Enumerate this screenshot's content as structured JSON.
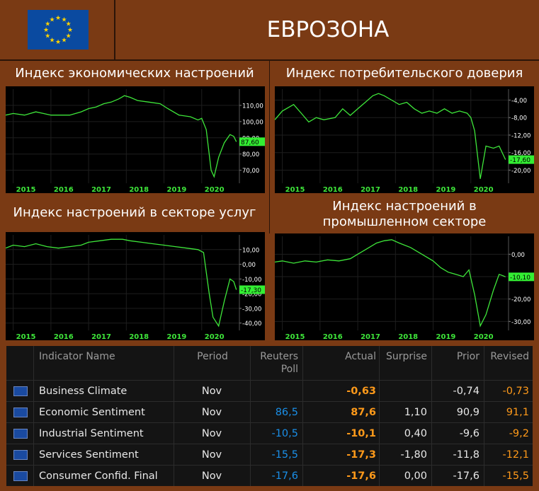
{
  "header": {
    "region": "ЕВРОЗОНА",
    "flag_icon": "eu-flag-icon"
  },
  "colors": {
    "line": "#3ee63a",
    "axis_text": "#ffffff",
    "year_text": "#3ee63a",
    "positive_value": "#ff9a1a",
    "poll_value": "#1a8fe8",
    "background": "#7a3a14"
  },
  "chart_data": [
    {
      "type": "line",
      "title": "Индекс экономических настроений",
      "x_ticks": [
        "2015",
        "2016",
        "2017",
        "2018",
        "2019",
        "2020"
      ],
      "y_ticks": [
        "110,00",
        "100,00",
        "90,00",
        "80,00",
        "70,00"
      ],
      "ylim": [
        62,
        120
      ],
      "xlim": [
        2014.8,
        2021.0
      ],
      "last_value_label": "87,60",
      "last_value": 87.6,
      "series": [
        {
          "x": [
            2014.8,
            2015.0,
            2015.3,
            2015.6,
            2015.8,
            2016.0,
            2016.2,
            2016.5,
            2016.8,
            2017.0,
            2017.2,
            2017.4,
            2017.6,
            2017.8,
            2017.95,
            2018.1,
            2018.3,
            2018.6,
            2018.9,
            2019.1,
            2019.4,
            2019.7,
            2019.9,
            2020.0,
            2020.12,
            2020.25,
            2020.33,
            2020.45,
            2020.6,
            2020.75,
            2020.85,
            2020.92
          ],
          "y": [
            104,
            105,
            104,
            106,
            105,
            104,
            104,
            104,
            106,
            108,
            109,
            111,
            112,
            114,
            116,
            115,
            113,
            112,
            111,
            108,
            104,
            103,
            101,
            102,
            95,
            70,
            66,
            78,
            87,
            92,
            90.9,
            87.6
          ]
        }
      ]
    },
    {
      "type": "line",
      "title": "Индекс потребительского доверия",
      "x_ticks": [
        "2015",
        "2016",
        "2017",
        "2018",
        "2019",
        "2020"
      ],
      "y_ticks": [
        "-4,00",
        "-8,00",
        "-12,00",
        "-16,00",
        "-20,00"
      ],
      "ylim": [
        -23,
        -1.5
      ],
      "xlim": [
        2014.8,
        2021.0
      ],
      "last_value_label": "-17,60",
      "last_value": -17.6,
      "series": [
        {
          "x": [
            2014.8,
            2015.0,
            2015.3,
            2015.5,
            2015.7,
            2015.9,
            2016.1,
            2016.4,
            2016.6,
            2016.8,
            2017.0,
            2017.2,
            2017.4,
            2017.55,
            2017.7,
            2017.9,
            2018.1,
            2018.3,
            2018.5,
            2018.7,
            2018.9,
            2019.1,
            2019.3,
            2019.5,
            2019.7,
            2019.9,
            2020.0,
            2020.1,
            2020.25,
            2020.4,
            2020.6,
            2020.75,
            2020.92
          ],
          "y": [
            -8.5,
            -6.5,
            -5,
            -7,
            -9,
            -8,
            -8.5,
            -8,
            -6,
            -7.5,
            -6,
            -4.5,
            -3,
            -2.5,
            -3,
            -4,
            -5,
            -4.5,
            -6,
            -7,
            -6.5,
            -7,
            -6,
            -7,
            -6.5,
            -7,
            -8,
            -11,
            -22,
            -14.5,
            -15,
            -14.5,
            -17.6
          ]
        }
      ]
    },
    {
      "type": "line",
      "title": "Индекс настроений в секторе услуг",
      "x_ticks": [
        "2015",
        "2016",
        "2017",
        "2018",
        "2019",
        "2020"
      ],
      "y_ticks": [
        "10,00",
        "0,00",
        "-10,00",
        "-20,00",
        "-30,00",
        "-40,00"
      ],
      "ylim": [
        -45,
        20
      ],
      "xlim": [
        2014.8,
        2021.0
      ],
      "last_value_label": "-17,30",
      "last_value": -17.3,
      "series": [
        {
          "x": [
            2014.8,
            2015.0,
            2015.3,
            2015.6,
            2015.9,
            2016.2,
            2016.5,
            2016.8,
            2017.0,
            2017.3,
            2017.6,
            2017.9,
            2018.1,
            2018.4,
            2018.7,
            2019.0,
            2019.3,
            2019.6,
            2019.9,
            2020.05,
            2020.2,
            2020.3,
            2020.45,
            2020.6,
            2020.75,
            2020.85,
            2020.92
          ],
          "y": [
            11,
            13,
            12,
            14,
            12,
            11,
            12,
            13,
            15,
            16,
            17,
            17,
            16,
            15,
            14,
            13,
            12,
            11,
            10,
            8,
            -20,
            -36,
            -42,
            -25,
            -10,
            -11.8,
            -17.3
          ]
        }
      ]
    },
    {
      "type": "line",
      "title": "Индекс настроений в промышленном секторе",
      "x_ticks": [
        "2015",
        "2016",
        "2017",
        "2018",
        "2019",
        "2020"
      ],
      "y_ticks": [
        "0,00",
        "-10,00",
        "-20,00",
        "-30,00"
      ],
      "ylim": [
        -34,
        8
      ],
      "xlim": [
        2014.8,
        2021.0
      ],
      "last_value_label": "-10,10",
      "last_value": -10.1,
      "series": [
        {
          "x": [
            2014.8,
            2015.0,
            2015.3,
            2015.6,
            2015.9,
            2016.2,
            2016.5,
            2016.8,
            2017.0,
            2017.3,
            2017.5,
            2017.7,
            2017.9,
            2018.1,
            2018.4,
            2018.7,
            2019.0,
            2019.2,
            2019.4,
            2019.6,
            2019.8,
            2019.95,
            2020.1,
            2020.25,
            2020.4,
            2020.6,
            2020.75,
            2020.85,
            2020.92
          ],
          "y": [
            -3.5,
            -3,
            -4,
            -3,
            -3.5,
            -2.5,
            -3,
            -2,
            0,
            3,
            5,
            6,
            6.5,
            5,
            3,
            0,
            -3,
            -6,
            -8,
            -9,
            -10,
            -7,
            -18,
            -32,
            -27,
            -16,
            -9,
            -9.6,
            -10.1
          ]
        }
      ]
    }
  ],
  "table": {
    "headers": {
      "name": "Indicator Name",
      "period": "Period",
      "poll": "Reuters Poll",
      "actual": "Actual",
      "surprise": "Surprise",
      "prior": "Prior",
      "revised": "Revised"
    },
    "rows": [
      {
        "name": "Business Climate",
        "period": "Nov",
        "poll": "",
        "actual": "-0,63",
        "surprise": "",
        "prior": "-0,74",
        "revised": "-0,73"
      },
      {
        "name": "Economic Sentiment",
        "period": "Nov",
        "poll": "86,5",
        "actual": "87,6",
        "surprise": "1,10",
        "prior": "90,9",
        "revised": "91,1"
      },
      {
        "name": "Industrial Sentiment",
        "period": "Nov",
        "poll": "-10,5",
        "actual": "-10,1",
        "surprise": "0,40",
        "prior": "-9,6",
        "revised": "-9,2"
      },
      {
        "name": "Services Sentiment",
        "period": "Nov",
        "poll": "-15,5",
        "actual": "-17,3",
        "surprise": "-1,80",
        "prior": "-11,8",
        "revised": "-12,1"
      },
      {
        "name": "Consumer Confid. Final",
        "period": "Nov",
        "poll": "-17,6",
        "actual": "-17,6",
        "surprise": "0,00",
        "prior": "-17,6",
        "revised": "-15,5"
      }
    ]
  }
}
